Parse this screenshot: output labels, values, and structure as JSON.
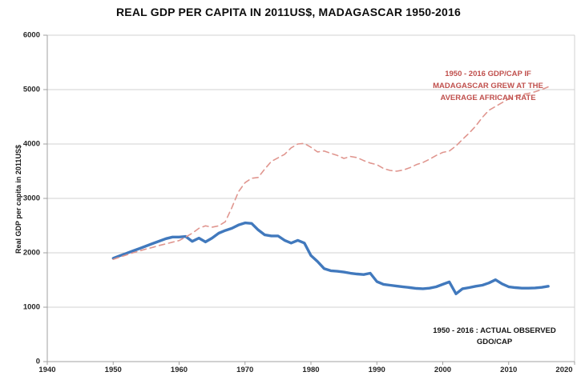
{
  "title": "REAL GDP PER CAPITA IN 2011US$, MADAGASCAR 1950-2016",
  "colors": {
    "actual_line": "#4179BD",
    "counterfactual_line": "#E0968F",
    "counterfactual_text": "#C0504D",
    "actual_text": "#141414",
    "grid": "#D0D0D0",
    "axis": "#A0A0A0",
    "tick_text": "#262626"
  },
  "annotations": {
    "counterfactual": {
      "line1": "1950 - 2016 GDP/CAP IF",
      "line2": "MADAGASCAR GREW AT THE",
      "line3": "AVERAGE AFRICAN RATE"
    },
    "actual": {
      "line1": "1950 - 2016 :  ACTUAL OBSERVED",
      "line2": "GDO/CAP"
    }
  },
  "chart_data": {
    "type": "line",
    "title": "REAL GDP PER CAPITA IN 2011US$, MADAGASCAR 1950-2016",
    "xlabel": "",
    "ylabel": "Real GDP per capita in 2011US$",
    "xlim": [
      1940,
      2020
    ],
    "ylim": [
      0,
      6000
    ],
    "x_ticks": [
      1940,
      1950,
      1960,
      1970,
      1980,
      1990,
      2000,
      2010,
      2020
    ],
    "y_ticks": [
      0,
      1000,
      2000,
      3000,
      4000,
      5000,
      6000
    ],
    "grid": "horizontal",
    "legend_position": "none (in-plot text annotations)",
    "x": [
      1950,
      1951,
      1952,
      1953,
      1954,
      1955,
      1956,
      1957,
      1958,
      1959,
      1960,
      1961,
      1962,
      1963,
      1964,
      1965,
      1966,
      1967,
      1968,
      1969,
      1970,
      1971,
      1972,
      1973,
      1974,
      1975,
      1976,
      1977,
      1978,
      1979,
      1980,
      1981,
      1982,
      1983,
      1984,
      1985,
      1986,
      1987,
      1988,
      1989,
      1990,
      1991,
      1992,
      1993,
      1994,
      1995,
      1996,
      1997,
      1998,
      1999,
      2000,
      2001,
      2002,
      2003,
      2004,
      2005,
      2006,
      2007,
      2008,
      2009,
      2010,
      2011,
      2012,
      2013,
      2014,
      2015,
      2016
    ],
    "series": [
      {
        "id": "actual",
        "name": "Actual observed GDP/CAP",
        "style": "solid",
        "width": 3.4,
        "dash": "",
        "color_key": "actual_line",
        "values": [
          1900,
          1945,
          1990,
          2035,
          2080,
          2125,
          2170,
          2215,
          2260,
          2290,
          2290,
          2300,
          2210,
          2270,
          2200,
          2270,
          2360,
          2410,
          2450,
          2510,
          2550,
          2540,
          2420,
          2330,
          2310,
          2310,
          2230,
          2180,
          2230,
          2180,
          1950,
          1840,
          1710,
          1670,
          1660,
          1645,
          1625,
          1610,
          1600,
          1625,
          1470,
          1420,
          1405,
          1390,
          1375,
          1360,
          1345,
          1340,
          1350,
          1375,
          1420,
          1465,
          1245,
          1340,
          1360,
          1385,
          1405,
          1445,
          1505,
          1430,
          1375,
          1360,
          1350,
          1350,
          1355,
          1365,
          1385
        ]
      },
      {
        "id": "counterfactual",
        "name": "GDP/CAP if Madagascar grew at the average African rate",
        "style": "dashed",
        "width": 1.6,
        "dash": "7 5",
        "color_key": "counterfactual_line",
        "values": [
          1880,
          1920,
          1960,
          2000,
          2035,
          2070,
          2100,
          2135,
          2165,
          2195,
          2225,
          2290,
          2360,
          2450,
          2495,
          2470,
          2495,
          2570,
          2830,
          3120,
          3290,
          3370,
          3385,
          3540,
          3680,
          3745,
          3810,
          3930,
          4000,
          4010,
          3940,
          3855,
          3870,
          3830,
          3790,
          3735,
          3770,
          3750,
          3695,
          3650,
          3620,
          3550,
          3515,
          3500,
          3520,
          3565,
          3620,
          3660,
          3720,
          3790,
          3845,
          3870,
          3965,
          4085,
          4200,
          4330,
          4490,
          4620,
          4690,
          4760,
          4830,
          4880,
          4910,
          4930,
          4960,
          5000,
          5050
        ]
      }
    ]
  }
}
